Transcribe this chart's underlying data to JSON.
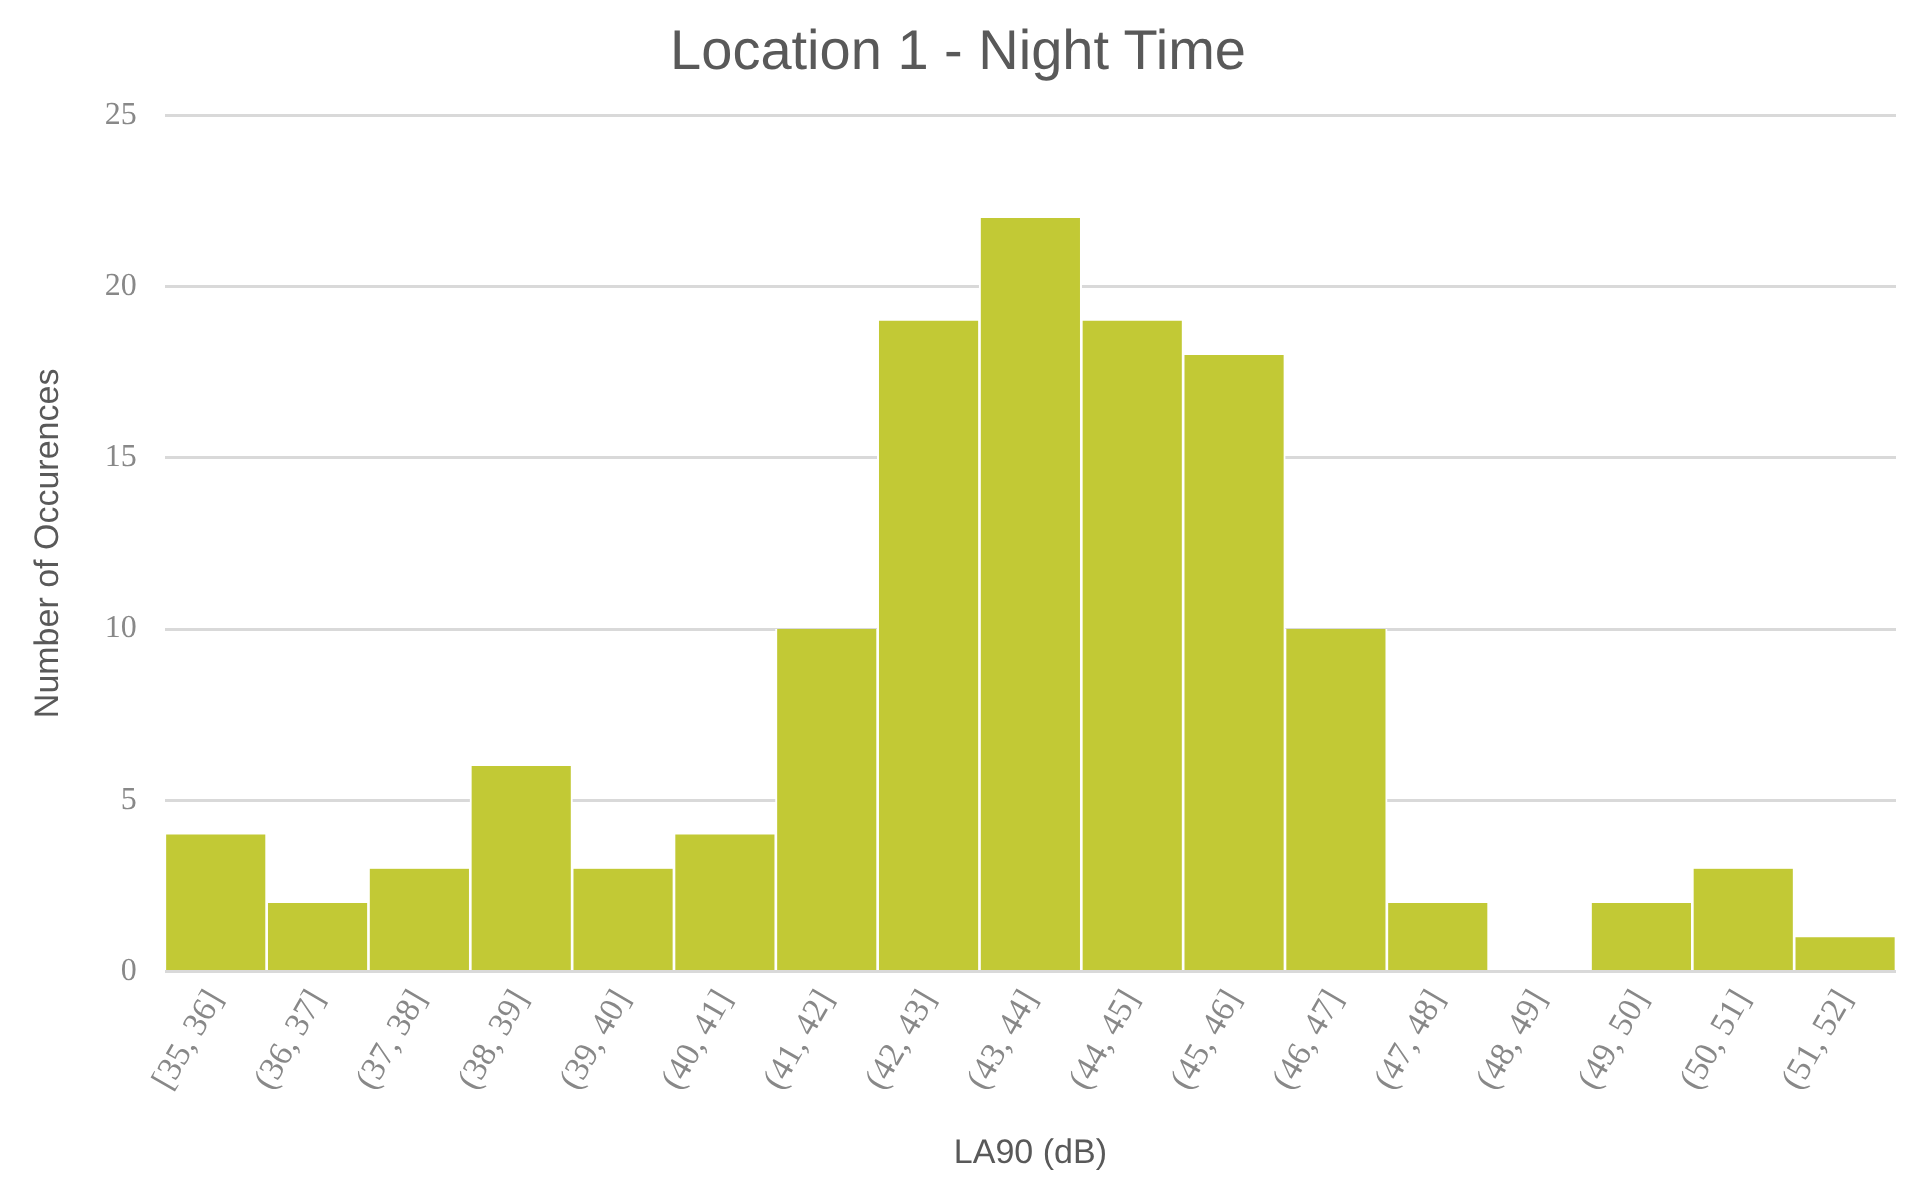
{
  "chart_data": {
    "type": "bar",
    "title": "Location 1 - Night Time",
    "xlabel": "LA90 (dB)",
    "ylabel": "Number of Occurences",
    "categories": [
      "[35, 36]",
      "(36, 37]",
      "(37, 38]",
      "(38, 39]",
      "(39, 40]",
      "(40, 41]",
      "(41, 42]",
      "(42, 43]",
      "(43, 44]",
      "(44, 45]",
      "(45, 46]",
      "(46, 47]",
      "(47, 48]",
      "(48, 49]",
      "(49, 50]",
      "(50, 51]",
      "(51, 52]"
    ],
    "values": [
      4,
      2,
      3,
      6,
      3,
      4,
      10,
      19,
      22,
      19,
      18,
      10,
      2,
      0,
      2,
      3,
      1
    ],
    "color": "#c2c935",
    "ylim": [
      0,
      25
    ],
    "yticks": [
      0,
      5,
      10,
      15,
      20,
      25
    ],
    "grid": "y",
    "legend": false
  }
}
